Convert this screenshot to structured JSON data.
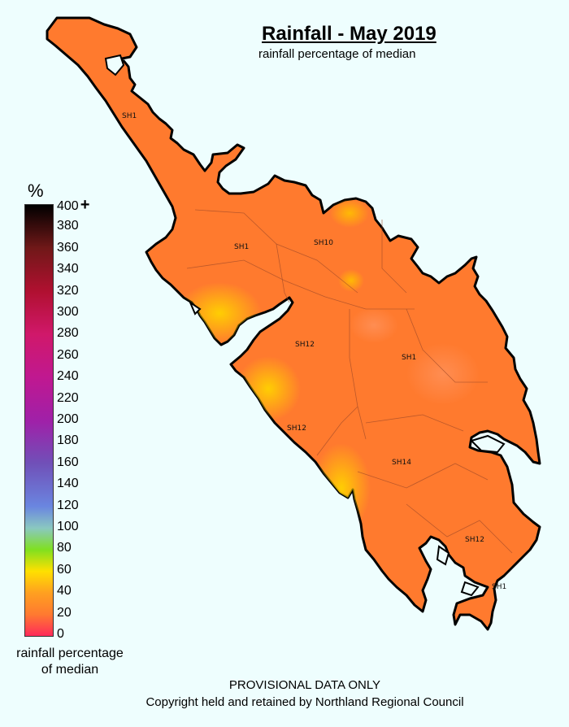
{
  "title": "Rainfall - May 2019",
  "subtitle": "rainfall percentage of median",
  "legend": {
    "unit": "%",
    "ticks": [
      "400",
      "380",
      "360",
      "340",
      "320",
      "300",
      "280",
      "260",
      "240",
      "220",
      "200",
      "180",
      "160",
      "140",
      "120",
      "100",
      "80",
      "60",
      "40",
      "20",
      "0"
    ],
    "top_marker": "+",
    "caption_line1": "rainfall percentage",
    "caption_line2": "of median",
    "colors": {
      "0": "#ff2a5a",
      "20": "#ff7a30",
      "40": "#ffa020",
      "60": "#ffe000",
      "80": "#80e020",
      "100": "#8ac8c0",
      "120": "#6a86e0",
      "160": "#7050b8",
      "200": "#a020a8",
      "240": "#c01890",
      "280": "#d0186a",
      "320": "#b01030",
      "360": "#701818",
      "400": "#000000"
    }
  },
  "map": {
    "dominant_color": "#ff7a2e",
    "low_color": "#ffd000",
    "road_labels": [
      "SH1",
      "SH1",
      "SH10",
      "SH12",
      "SH1",
      "SH12",
      "SH14",
      "SH12",
      "SH1"
    ]
  },
  "footer": {
    "line1": "PROVISIONAL DATA ONLY",
    "line2": "Copyright held and retained by Northland Regional Council"
  }
}
